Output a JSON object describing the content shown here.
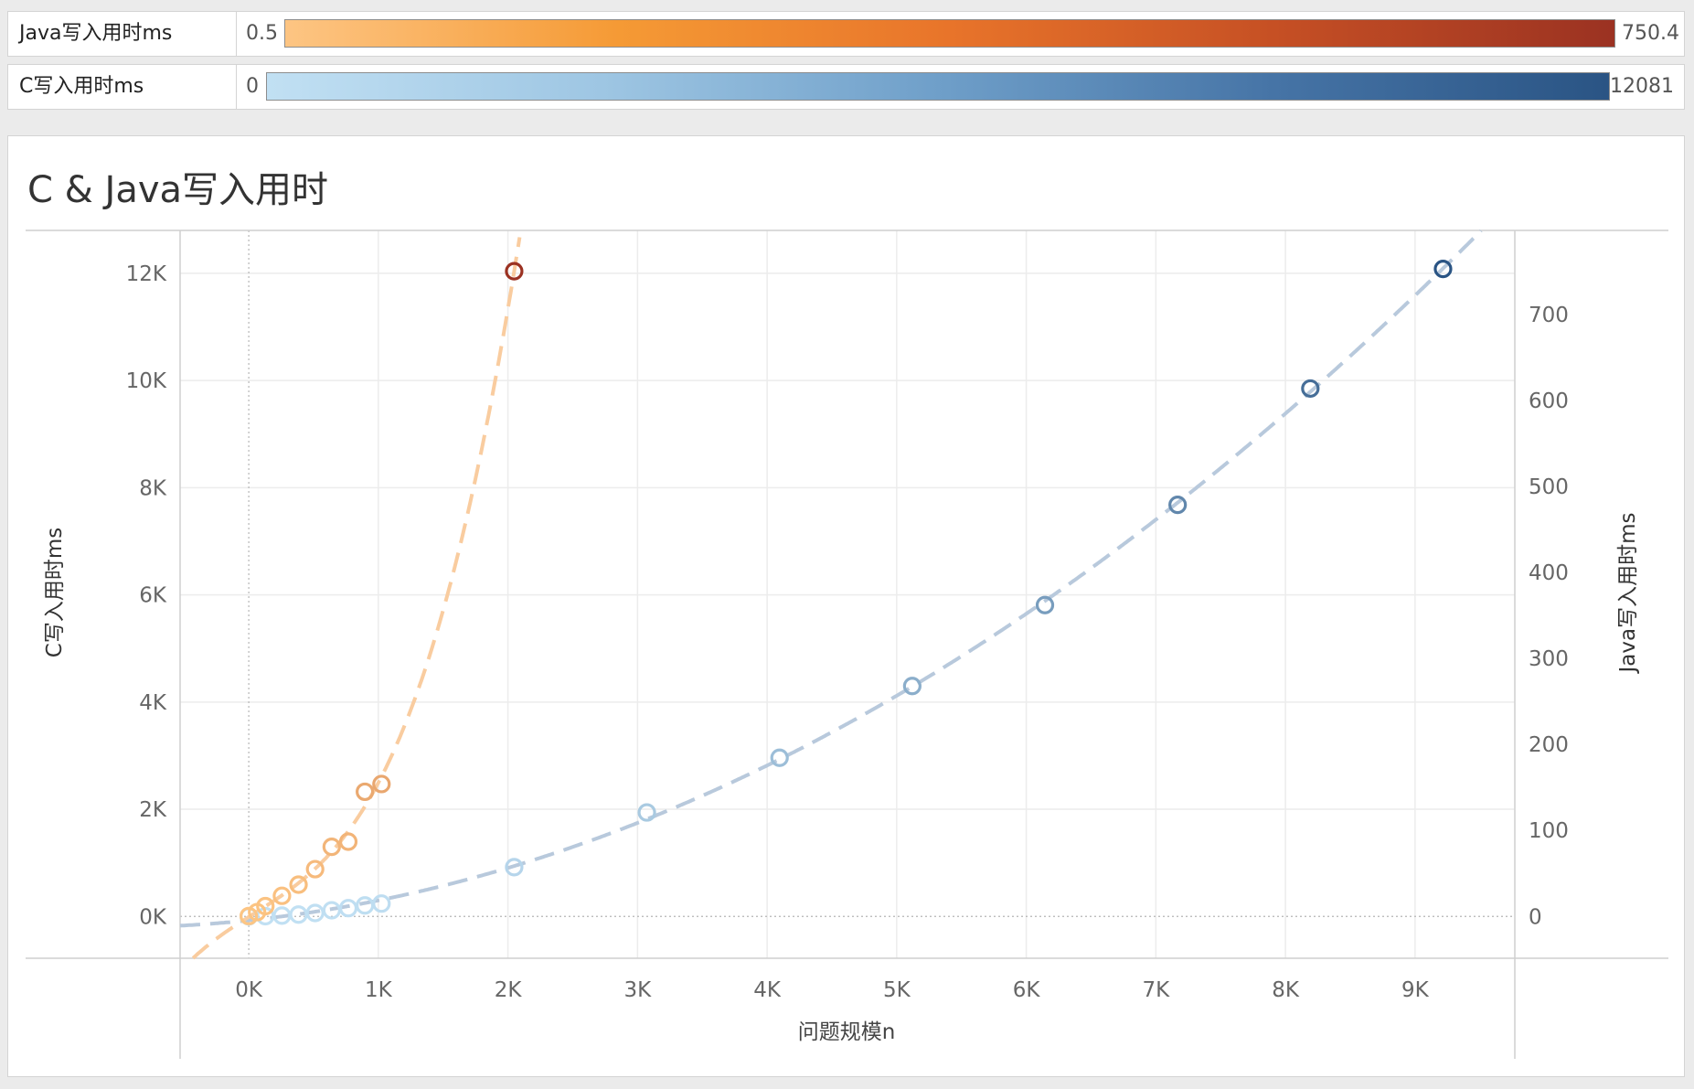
{
  "legends": [
    {
      "name": "Java写入用时ms",
      "min": "0.5",
      "max": "750.4",
      "gradient": [
        "#fdc583",
        "#f59a35",
        "#e8742a",
        "#c54f24",
        "#9b3222"
      ]
    },
    {
      "name": "C写入用时ms",
      "min": "0",
      "max": "12081",
      "gradient": [
        "#c1e0f3",
        "#9ec6e3",
        "#6f9fc9",
        "#4674a6",
        "#2a5484"
      ]
    }
  ],
  "chart_data": {
    "type": "scatter",
    "title": "C & Java写入用时",
    "xlabel": "问题规模n",
    "ylabel_left": "C写入用时ms",
    "ylabel_right": "Java写入用时ms",
    "x_ticks": [
      "0K",
      "1K",
      "2K",
      "3K",
      "4K",
      "5K",
      "6K",
      "7K",
      "8K",
      "9K"
    ],
    "y_left_ticks": [
      "0K",
      "2K",
      "4K",
      "6K",
      "8K",
      "10K",
      "12K"
    ],
    "y_right_ticks": [
      "0",
      "100",
      "200",
      "300",
      "400",
      "500",
      "600",
      "700"
    ],
    "xlim": [
      -530,
      9770
    ],
    "ylim_left": [
      -780,
      12800
    ],
    "ylim_right": [
      0,
      800
    ],
    "grid": true,
    "trend_lines": "dashed polynomial",
    "series": [
      {
        "name": "C写入用时ms",
        "axis": "left",
        "color_min": "#c1e0f3",
        "color_max": "#2a5484",
        "trend_color": "#b8c9dc",
        "points": [
          [
            0,
            0
          ],
          [
            128,
            5
          ],
          [
            256,
            15
          ],
          [
            384,
            35
          ],
          [
            512,
            65
          ],
          [
            640,
            115
          ],
          [
            768,
            155
          ],
          [
            896,
            205
          ],
          [
            1024,
            240
          ],
          [
            2048,
            920
          ],
          [
            3072,
            1940
          ],
          [
            4096,
            2960
          ],
          [
            5120,
            4300
          ],
          [
            6144,
            5810
          ],
          [
            7168,
            7680
          ],
          [
            8192,
            9850
          ],
          [
            9216,
            12081
          ]
        ]
      },
      {
        "name": "Java写入用时ms",
        "axis": "right",
        "color_min": "#fdc583",
        "color_max": "#9b3222",
        "trend_color": "#f9cc9f",
        "points": [
          [
            0,
            0.5
          ],
          [
            64,
            5
          ],
          [
            128,
            12
          ],
          [
            256,
            24
          ],
          [
            384,
            37
          ],
          [
            512,
            55
          ],
          [
            640,
            81
          ],
          [
            768,
            87
          ],
          [
            896,
            145
          ],
          [
            1024,
            154
          ],
          [
            2048,
            750.4
          ]
        ]
      }
    ]
  }
}
